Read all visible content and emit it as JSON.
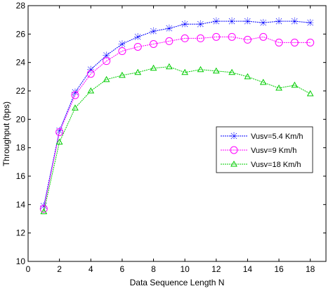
{
  "chart_data": {
    "type": "line",
    "title": "",
    "xlabel": "Data Sequence Length N",
    "ylabel": "Throughput (bps)",
    "xlim": [
      0,
      19
    ],
    "ylim": [
      10,
      28
    ],
    "xticks": [
      0,
      2,
      4,
      6,
      8,
      10,
      12,
      14,
      16,
      18
    ],
    "yticks": [
      10,
      12,
      14,
      16,
      18,
      20,
      22,
      24,
      26,
      28
    ],
    "grid": false,
    "legend_position": "right",
    "x": [
      1,
      2,
      3,
      4,
      5,
      6,
      7,
      8,
      9,
      10,
      11,
      12,
      13,
      14,
      15,
      16,
      17,
      18
    ],
    "series": [
      {
        "name": "Vusv=5.4 Km/h",
        "color": "#0000ff",
        "marker": "star",
        "values": [
          13.9,
          19.2,
          21.9,
          23.5,
          24.5,
          25.3,
          25.8,
          26.2,
          26.4,
          26.7,
          26.7,
          26.9,
          26.9,
          26.9,
          26.8,
          26.9,
          26.9,
          26.8
        ]
      },
      {
        "name": "Vusv=9 Km/h",
        "color": "#ff00ff",
        "marker": "circle",
        "values": [
          13.7,
          19.1,
          21.7,
          23.2,
          24.1,
          24.8,
          25.1,
          25.3,
          25.5,
          25.7,
          25.7,
          25.8,
          25.8,
          25.6,
          25.8,
          25.4,
          25.4,
          25.4
        ]
      },
      {
        "name": "Vusv=18 Km/h",
        "color": "#00cc00",
        "marker": "triangle",
        "values": [
          13.5,
          18.4,
          20.8,
          22.0,
          22.8,
          23.1,
          23.3,
          23.6,
          23.7,
          23.3,
          23.5,
          23.4,
          23.3,
          23.0,
          22.6,
          22.2,
          22.4,
          21.8
        ]
      }
    ]
  }
}
